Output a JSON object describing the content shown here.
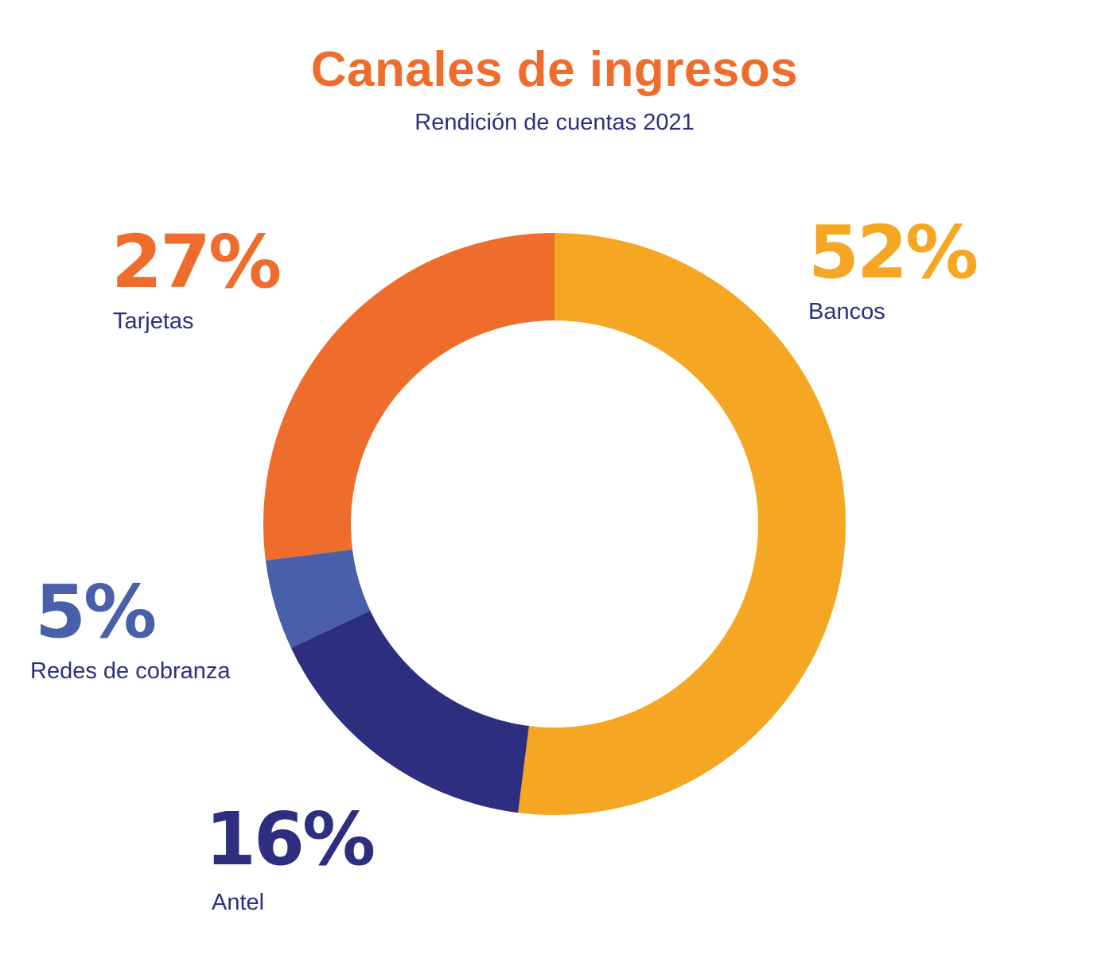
{
  "chart_data": {
    "type": "pie",
    "style": "donut",
    "title": "Canales de ingresos",
    "subtitle": "Rendición de cuentas 2021",
    "series": [
      {
        "name": "Bancos",
        "value": 52,
        "label": "52%",
        "color": "#F5A623"
      },
      {
        "name": "Antel",
        "value": 16,
        "label": "16%",
        "color": "#2D2E80"
      },
      {
        "name": "Redes de cobranza",
        "value": 5,
        "label": "5%",
        "color": "#4A5FAA"
      },
      {
        "name": "Tarjetas",
        "value": 27,
        "label": "27%",
        "color": "#EE6D2C"
      }
    ]
  }
}
